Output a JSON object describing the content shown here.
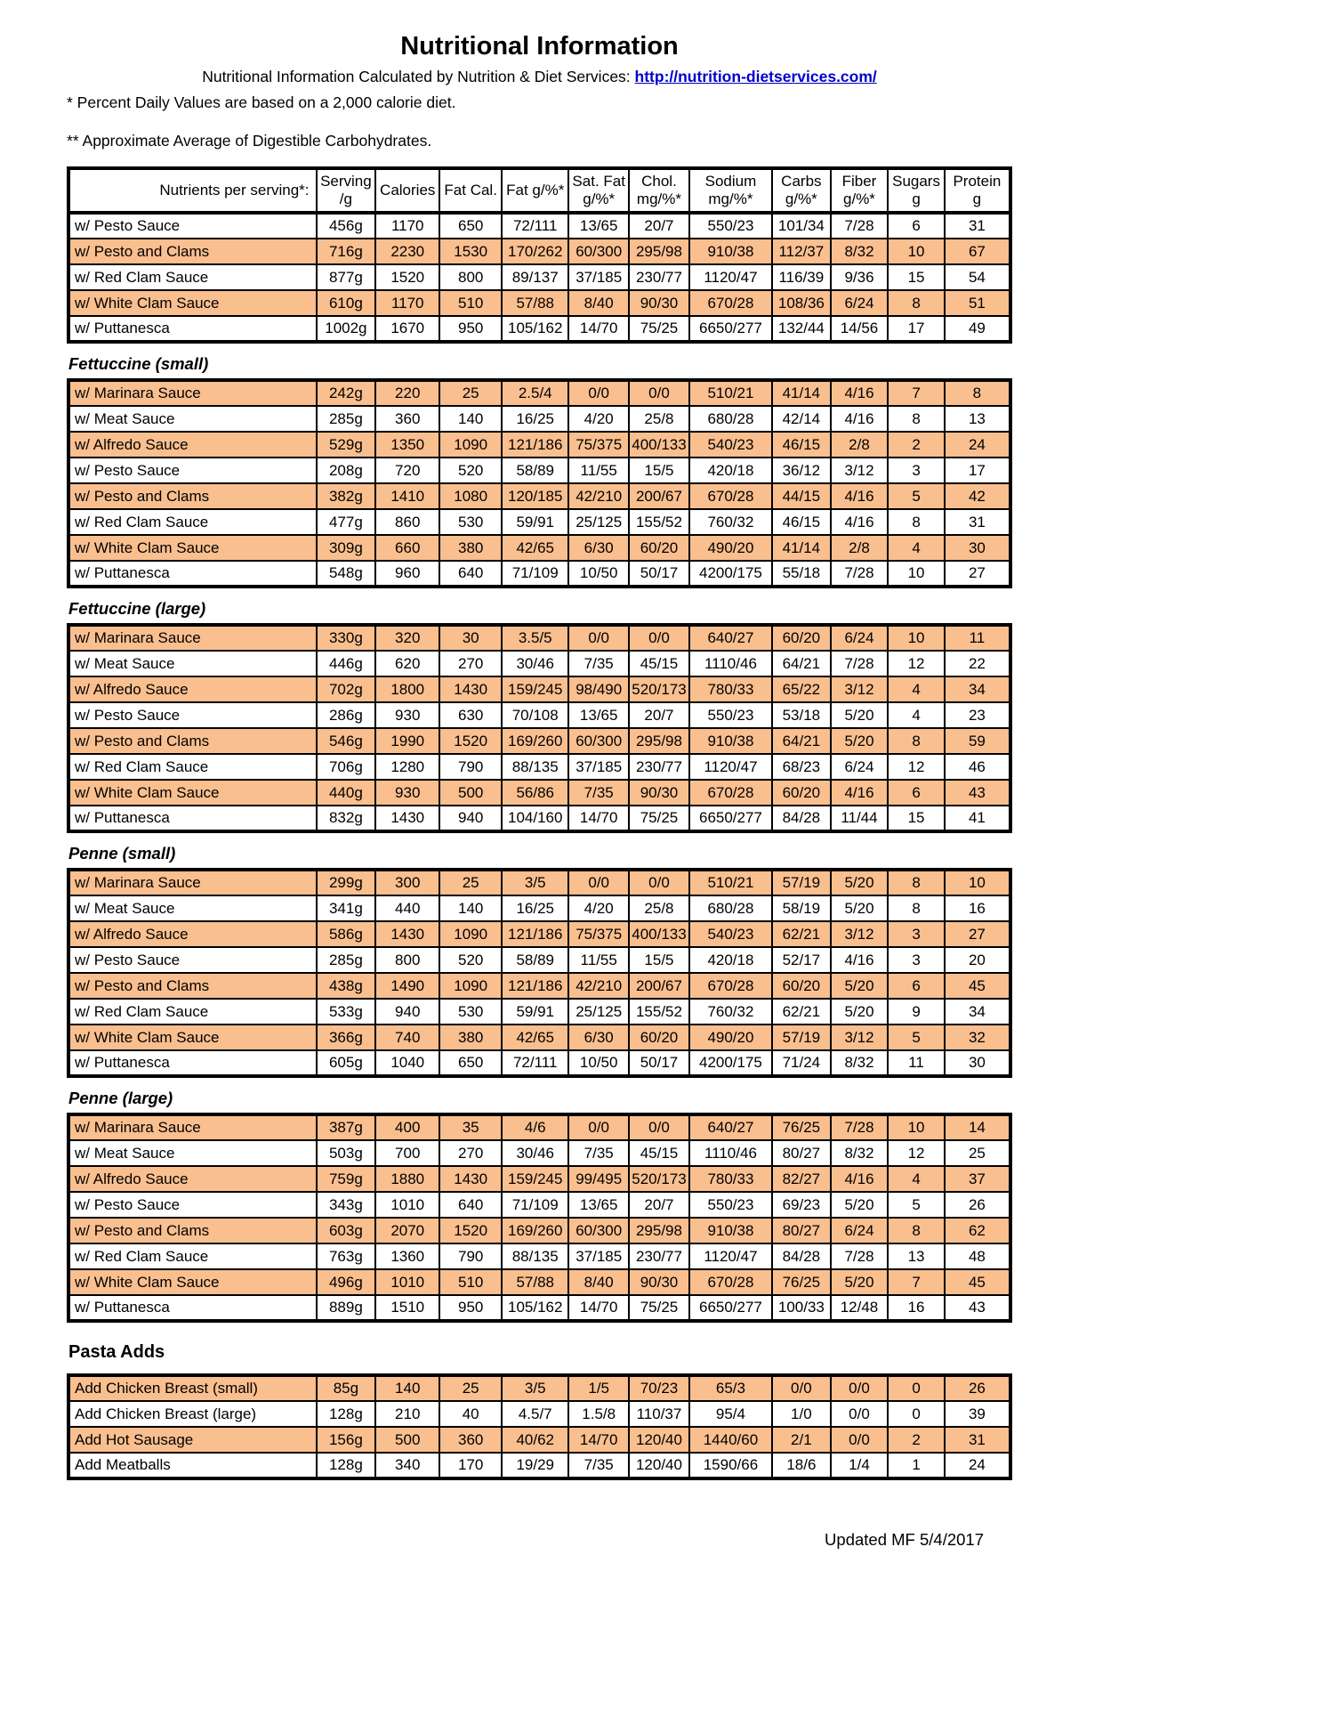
{
  "header": {
    "title": "Nutritional Information",
    "source_prefix": "Nutritional Information Calculated by Nutrition & Diet Services: ",
    "source_link": "http://nutrition-dietservices.com/",
    "footnote_daily_values": "* Percent Daily Values are based on a 2,000 calorie diet.",
    "footnote_carbohydrates": "** Approximate Average of Digestible Carbohydrates."
  },
  "colors": {
    "row_highlight": "#FABF8F",
    "link_blue": "#0000CC"
  },
  "table": {
    "columns": [
      {
        "lines": [
          "Nutrients per serving*:"
        ]
      },
      {
        "lines": [
          "Serving",
          "/g"
        ]
      },
      {
        "lines": [
          "Calories"
        ]
      },
      {
        "lines": [
          "Fat Cal."
        ]
      },
      {
        "lines": [
          "Fat g/%*"
        ]
      },
      {
        "lines": [
          "Sat. Fat",
          "g/%*"
        ]
      },
      {
        "lines": [
          "Chol.",
          "mg/%*"
        ]
      },
      {
        "lines": [
          "Sodium",
          "mg/%*"
        ]
      },
      {
        "lines": [
          "Carbs",
          "g/%*"
        ]
      },
      {
        "lines": [
          "Fiber",
          "g/%*"
        ]
      },
      {
        "lines": [
          "Sugars",
          "g"
        ]
      },
      {
        "lines": [
          "Protein",
          "g"
        ]
      }
    ],
    "sections": [
      {
        "label": "",
        "italic": false,
        "rows": [
          {
            "shaded": false,
            "cells": [
              "w/ Pesto Sauce",
              "456g",
              "1170",
              "650",
              "72/111",
              "13/65",
              "20/7",
              "550/23",
              "101/34",
              "7/28",
              "6",
              "31"
            ]
          },
          {
            "shaded": true,
            "cells": [
              "w/ Pesto and Clams",
              "716g",
              "2230",
              "1530",
              "170/262",
              "60/300",
              "295/98",
              "910/38",
              "112/37",
              "8/32",
              "10",
              "67"
            ]
          },
          {
            "shaded": false,
            "cells": [
              "w/ Red Clam Sauce",
              "877g",
              "1520",
              "800",
              "89/137",
              "37/185",
              "230/77",
              "1120/47",
              "116/39",
              "9/36",
              "15",
              "54"
            ]
          },
          {
            "shaded": true,
            "cells": [
              "w/ White Clam Sauce",
              "610g",
              "1170",
              "510",
              "57/88",
              "8/40",
              "90/30",
              "670/28",
              "108/36",
              "6/24",
              "8",
              "51"
            ]
          },
          {
            "shaded": false,
            "cells": [
              "w/ Puttanesca",
              "1002g",
              "1670",
              "950",
              "105/162",
              "14/70",
              "75/25",
              "6650/277",
              "132/44",
              "14/56",
              "17",
              "49"
            ]
          }
        ]
      },
      {
        "label": "Fettuccine (small)",
        "italic": true,
        "rows": [
          {
            "shaded": true,
            "cells": [
              "w/ Marinara Sauce",
              "242g",
              "220",
              "25",
              "2.5/4",
              "0/0",
              "0/0",
              "510/21",
              "41/14",
              "4/16",
              "7",
              "8"
            ]
          },
          {
            "shaded": false,
            "cells": [
              "w/ Meat Sauce",
              "285g",
              "360",
              "140",
              "16/25",
              "4/20",
              "25/8",
              "680/28",
              "42/14",
              "4/16",
              "8",
              "13"
            ]
          },
          {
            "shaded": true,
            "cells": [
              "w/ Alfredo Sauce",
              "529g",
              "1350",
              "1090",
              "121/186",
              "75/375",
              "400/133",
              "540/23",
              "46/15",
              "2/8",
              "2",
              "24"
            ]
          },
          {
            "shaded": false,
            "cells": [
              "w/ Pesto Sauce",
              "208g",
              "720",
              "520",
              "58/89",
              "11/55",
              "15/5",
              "420/18",
              "36/12",
              "3/12",
              "3",
              "17"
            ]
          },
          {
            "shaded": true,
            "cells": [
              "w/ Pesto and Clams",
              "382g",
              "1410",
              "1080",
              "120/185",
              "42/210",
              "200/67",
              "670/28",
              "44/15",
              "4/16",
              "5",
              "42"
            ]
          },
          {
            "shaded": false,
            "cells": [
              "w/ Red Clam Sauce",
              "477g",
              "860",
              "530",
              "59/91",
              "25/125",
              "155/52",
              "760/32",
              "46/15",
              "4/16",
              "8",
              "31"
            ]
          },
          {
            "shaded": true,
            "cells": [
              "w/ White Clam Sauce",
              "309g",
              "660",
              "380",
              "42/65",
              "6/30",
              "60/20",
              "490/20",
              "41/14",
              "2/8",
              "4",
              "30"
            ]
          },
          {
            "shaded": false,
            "cells": [
              "w/ Puttanesca",
              "548g",
              "960",
              "640",
              "71/109",
              "10/50",
              "50/17",
              "4200/175",
              "55/18",
              "7/28",
              "10",
              "27"
            ]
          }
        ]
      },
      {
        "label": "Fettuccine (large)",
        "italic": true,
        "rows": [
          {
            "shaded": true,
            "cells": [
              "w/ Marinara Sauce",
              "330g",
              "320",
              "30",
              "3.5/5",
              "0/0",
              "0/0",
              "640/27",
              "60/20",
              "6/24",
              "10",
              "11"
            ]
          },
          {
            "shaded": false,
            "cells": [
              "w/ Meat Sauce",
              "446g",
              "620",
              "270",
              "30/46",
              "7/35",
              "45/15",
              "1110/46",
              "64/21",
              "7/28",
              "12",
              "22"
            ]
          },
          {
            "shaded": true,
            "cells": [
              "w/ Alfredo Sauce",
              "702g",
              "1800",
              "1430",
              "159/245",
              "98/490",
              "520/173",
              "780/33",
              "65/22",
              "3/12",
              "4",
              "34"
            ]
          },
          {
            "shaded": false,
            "cells": [
              "w/ Pesto Sauce",
              "286g",
              "930",
              "630",
              "70/108",
              "13/65",
              "20/7",
              "550/23",
              "53/18",
              "5/20",
              "4",
              "23"
            ]
          },
          {
            "shaded": true,
            "cells": [
              "w/ Pesto and Clams",
              "546g",
              "1990",
              "1520",
              "169/260",
              "60/300",
              "295/98",
              "910/38",
              "64/21",
              "5/20",
              "8",
              "59"
            ]
          },
          {
            "shaded": false,
            "cells": [
              "w/ Red Clam Sauce",
              "706g",
              "1280",
              "790",
              "88/135",
              "37/185",
              "230/77",
              "1120/47",
              "68/23",
              "6/24",
              "12",
              "46"
            ]
          },
          {
            "shaded": true,
            "cells": [
              "w/ White Clam Sauce",
              "440g",
              "930",
              "500",
              "56/86",
              "7/35",
              "90/30",
              "670/28",
              "60/20",
              "4/16",
              "6",
              "43"
            ]
          },
          {
            "shaded": false,
            "cells": [
              "w/ Puttanesca",
              "832g",
              "1430",
              "940",
              "104/160",
              "14/70",
              "75/25",
              "6650/277",
              "84/28",
              "11/44",
              "15",
              "41"
            ]
          }
        ]
      },
      {
        "label": "Penne (small)",
        "italic": true,
        "rows": [
          {
            "shaded": true,
            "cells": [
              "w/ Marinara Sauce",
              "299g",
              "300",
              "25",
              "3/5",
              "0/0",
              "0/0",
              "510/21",
              "57/19",
              "5/20",
              "8",
              "10"
            ]
          },
          {
            "shaded": false,
            "cells": [
              "w/ Meat Sauce",
              "341g",
              "440",
              "140",
              "16/25",
              "4/20",
              "25/8",
              "680/28",
              "58/19",
              "5/20",
              "8",
              "16"
            ]
          },
          {
            "shaded": true,
            "cells": [
              "w/ Alfredo Sauce",
              "586g",
              "1430",
              "1090",
              "121/186",
              "75/375",
              "400/133",
              "540/23",
              "62/21",
              "3/12",
              "3",
              "27"
            ]
          },
          {
            "shaded": false,
            "cells": [
              "w/ Pesto Sauce",
              "285g",
              "800",
              "520",
              "58/89",
              "11/55",
              "15/5",
              "420/18",
              "52/17",
              "4/16",
              "3",
              "20"
            ]
          },
          {
            "shaded": true,
            "cells": [
              "w/ Pesto and Clams",
              "438g",
              "1490",
              "1090",
              "121/186",
              "42/210",
              "200/67",
              "670/28",
              "60/20",
              "5/20",
              "6",
              "45"
            ]
          },
          {
            "shaded": false,
            "cells": [
              "w/ Red Clam Sauce",
              "533g",
              "940",
              "530",
              "59/91",
              "25/125",
              "155/52",
              "760/32",
              "62/21",
              "5/20",
              "9",
              "34"
            ]
          },
          {
            "shaded": true,
            "cells": [
              "w/ White Clam Sauce",
              "366g",
              "740",
              "380",
              "42/65",
              "6/30",
              "60/20",
              "490/20",
              "57/19",
              "3/12",
              "5",
              "32"
            ]
          },
          {
            "shaded": false,
            "cells": [
              "w/ Puttanesca",
              "605g",
              "1040",
              "650",
              "72/111",
              "10/50",
              "50/17",
              "4200/175",
              "71/24",
              "8/32",
              "11",
              "30"
            ]
          }
        ]
      },
      {
        "label": "Penne (large)",
        "italic": true,
        "rows": [
          {
            "shaded": true,
            "cells": [
              "w/ Marinara Sauce",
              "387g",
              "400",
              "35",
              "4/6",
              "0/0",
              "0/0",
              "640/27",
              "76/25",
              "7/28",
              "10",
              "14"
            ]
          },
          {
            "shaded": false,
            "cells": [
              "w/ Meat Sauce",
              "503g",
              "700",
              "270",
              "30/46",
              "7/35",
              "45/15",
              "1110/46",
              "80/27",
              "8/32",
              "12",
              "25"
            ]
          },
          {
            "shaded": true,
            "cells": [
              "w/ Alfredo Sauce",
              "759g",
              "1880",
              "1430",
              "159/245",
              "99/495",
              "520/173",
              "780/33",
              "82/27",
              "4/16",
              "4",
              "37"
            ]
          },
          {
            "shaded": false,
            "cells": [
              "w/ Pesto Sauce",
              "343g",
              "1010",
              "640",
              "71/109",
              "13/65",
              "20/7",
              "550/23",
              "69/23",
              "5/20",
              "5",
              "26"
            ]
          },
          {
            "shaded": true,
            "cells": [
              "w/ Pesto and Clams",
              "603g",
              "2070",
              "1520",
              "169/260",
              "60/300",
              "295/98",
              "910/38",
              "80/27",
              "6/24",
              "8",
              "62"
            ]
          },
          {
            "shaded": false,
            "cells": [
              "w/ Red Clam Sauce",
              "763g",
              "1360",
              "790",
              "88/135",
              "37/185",
              "230/77",
              "1120/47",
              "84/28",
              "7/28",
              "13",
              "48"
            ]
          },
          {
            "shaded": true,
            "cells": [
              "w/ White Clam Sauce",
              "496g",
              "1010",
              "510",
              "57/88",
              "8/40",
              "90/30",
              "670/28",
              "76/25",
              "5/20",
              "7",
              "45"
            ]
          },
          {
            "shaded": false,
            "cells": [
              "w/ Puttanesca",
              "889g",
              "1510",
              "950",
              "105/162",
              "14/70",
              "75/25",
              "6650/277",
              "100/33",
              "12/48",
              "16",
              "43"
            ]
          }
        ]
      },
      {
        "label": "Pasta Adds",
        "italic": false,
        "rows": [
          {
            "shaded": true,
            "cells": [
              "Add Chicken Breast (small)",
              "85g",
              "140",
              "25",
              "3/5",
              "1/5",
              "70/23",
              "65/3",
              "0/0",
              "0/0",
              "0",
              "26"
            ]
          },
          {
            "shaded": false,
            "cells": [
              "Add Chicken Breast (large)",
              "128g",
              "210",
              "40",
              "4.5/7",
              "1.5/8",
              "110/37",
              "95/4",
              "1/0",
              "0/0",
              "0",
              "39"
            ]
          },
          {
            "shaded": true,
            "cells": [
              "Add Hot Sausage",
              "156g",
              "500",
              "360",
              "40/62",
              "14/70",
              "120/40",
              "1440/60",
              "2/1",
              "0/0",
              "2",
              "31"
            ]
          },
          {
            "shaded": false,
            "cells": [
              "Add Meatballs",
              "128g",
              "340",
              "170",
              "19/29",
              "7/35",
              "120/40",
              "1590/66",
              "18/6",
              "1/4",
              "1",
              "24"
            ]
          }
        ]
      }
    ]
  },
  "footer": {
    "updated": "Updated MF 5/4/2017"
  }
}
